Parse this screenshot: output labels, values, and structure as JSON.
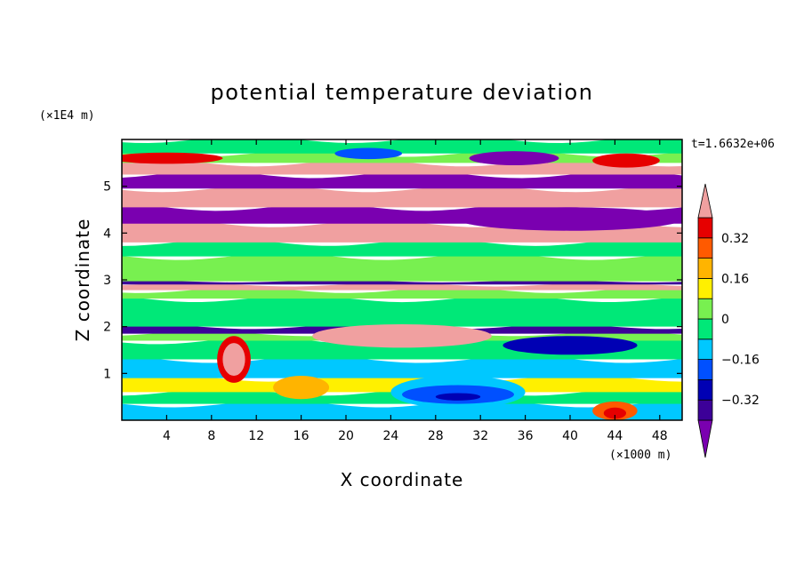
{
  "chart_data": {
    "type": "heatmap",
    "title": "potential temperature deviation",
    "xlabel": "X coordinate",
    "ylabel": "Z coordinate",
    "x_unit": "(×1000 m)",
    "y_unit": "(×1E4 m)",
    "time_label": "t=1.6632e+06",
    "xlim": [
      0,
      50
    ],
    "ylim": [
      0,
      6
    ],
    "x_ticks": [
      4,
      8,
      12,
      16,
      20,
      24,
      28,
      32,
      36,
      40,
      44,
      48
    ],
    "y_ticks": [
      1,
      2,
      3,
      4,
      5
    ],
    "colorbar": {
      "labeled_levels": [
        "0.32",
        "0.16",
        "0",
        "−0.16",
        "−0.32"
      ],
      "level_values": [
        -0.4,
        -0.32,
        -0.24,
        -0.16,
        -0.08,
        0,
        0.08,
        0.16,
        0.24,
        0.32,
        0.4
      ],
      "colors": [
        "#7a00b0",
        "#3c0098",
        "#0000b4",
        "#0050ff",
        "#00c8ff",
        "#00e878",
        "#78f050",
        "#fff000",
        "#ffb400",
        "#ff5a00",
        "#e60000",
        "#f0a0a0"
      ]
    },
    "bands": [
      {
        "z": [
          0.0,
          0.35
        ],
        "level": 4
      },
      {
        "z": [
          0.35,
          0.6
        ],
        "level": 5
      },
      {
        "z": [
          0.6,
          0.9
        ],
        "level": 7
      },
      {
        "z": [
          0.9,
          1.3
        ],
        "level": 4
      },
      {
        "z": [
          1.3,
          1.7
        ],
        "level": 5
      },
      {
        "z": [
          1.7,
          1.85
        ],
        "level": 6
      },
      {
        "z": [
          1.85,
          2.0
        ],
        "level": 1
      },
      {
        "z": [
          2.0,
          2.6
        ],
        "level": 5
      },
      {
        "z": [
          2.6,
          2.78
        ],
        "level": 6
      },
      {
        "z": [
          2.78,
          2.9
        ],
        "level": 11
      },
      {
        "z": [
          2.9,
          2.97
        ],
        "level": 1
      },
      {
        "z": [
          2.97,
          3.5
        ],
        "level": 6
      },
      {
        "z": [
          3.5,
          3.8
        ],
        "level": 5
      },
      {
        "z": [
          3.8,
          4.2
        ],
        "level": 11
      },
      {
        "z": [
          4.2,
          4.55
        ],
        "level": 0
      },
      {
        "z": [
          4.55,
          4.95
        ],
        "level": 11
      },
      {
        "z": [
          4.95,
          5.25
        ],
        "level": 0
      },
      {
        "z": [
          5.25,
          5.5
        ],
        "level": 11
      },
      {
        "z": [
          5.5,
          5.7
        ],
        "level": 6
      },
      {
        "z": [
          5.7,
          6.0
        ],
        "level": 5
      }
    ],
    "features": [
      {
        "cx": 30,
        "cz": 0.6,
        "rx": 6,
        "rz": 0.35,
        "level": 4
      },
      {
        "cx": 30,
        "cz": 0.55,
        "rx": 5,
        "rz": 0.2,
        "level": 3
      },
      {
        "cx": 30,
        "cz": 0.5,
        "rx": 2,
        "rz": 0.08,
        "level": 2
      },
      {
        "cx": 10,
        "cz": 1.3,
        "rx": 1.5,
        "rz": 0.5,
        "level": 10
      },
      {
        "cx": 10,
        "cz": 1.3,
        "rx": 1.0,
        "rz": 0.35,
        "level": 11
      },
      {
        "cx": 16,
        "cz": 0.7,
        "rx": 2.5,
        "rz": 0.25,
        "level": 8
      },
      {
        "cx": 44,
        "cz": 0.2,
        "rx": 2,
        "rz": 0.2,
        "level": 9
      },
      {
        "cx": 44,
        "cz": 0.15,
        "rx": 1,
        "rz": 0.12,
        "level": 10
      },
      {
        "cx": 25,
        "cz": 1.8,
        "rx": 8,
        "rz": 0.25,
        "level": 11
      },
      {
        "cx": 35,
        "cz": 5.6,
        "rx": 4,
        "rz": 0.15,
        "level": 0
      },
      {
        "cx": 22,
        "cz": 5.7,
        "rx": 3,
        "rz": 0.12,
        "level": 3
      },
      {
        "cx": 45,
        "cz": 5.55,
        "rx": 3,
        "rz": 0.15,
        "level": 10
      },
      {
        "cx": 4,
        "cz": 5.6,
        "rx": 5,
        "rz": 0.12,
        "level": 10
      },
      {
        "cx": 40,
        "cz": 4.3,
        "rx": 10,
        "rz": 0.25,
        "level": 0
      },
      {
        "cx": 40,
        "cz": 1.6,
        "rx": 6,
        "rz": 0.2,
        "level": 2
      }
    ]
  }
}
